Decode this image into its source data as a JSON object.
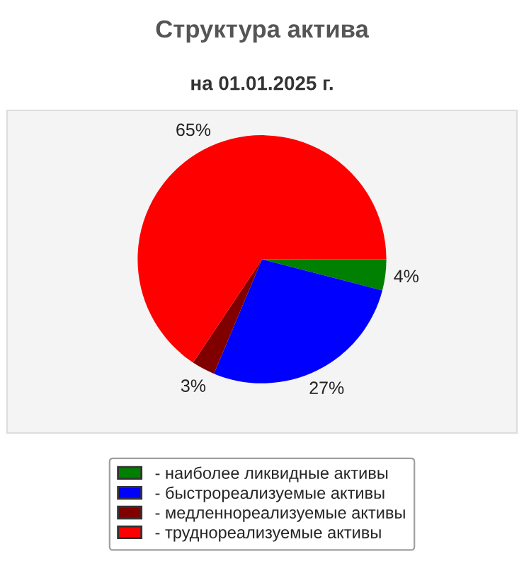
{
  "chart_data": {
    "type": "pie",
    "title": "Структура актива",
    "subtitle": "на 01.01.2025 г.",
    "categories": [
      "- наиболее ликвидные активы",
      "- быстрореализуемые активы",
      "- медленнореализуемые активы",
      "- труднореализуемые активы"
    ],
    "values": [
      4,
      27,
      3,
      65
    ],
    "value_labels": [
      "4%",
      "27%",
      "3%",
      "65%"
    ],
    "colors": [
      "#008000",
      "#0000ff",
      "#800000",
      "#ff0000"
    ],
    "legend": "bottom"
  }
}
